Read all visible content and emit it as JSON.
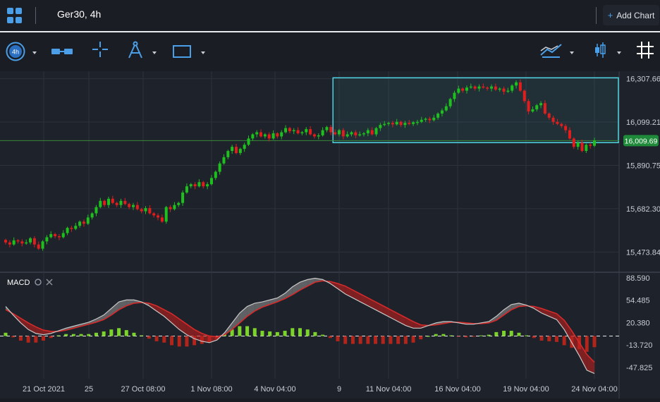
{
  "header": {
    "tab_title": "Ger30, 4h",
    "add_chart_label": "Add Chart"
  },
  "toolbar": {
    "timeframe_label": "4h"
  },
  "chart_data": [
    {
      "type": "candlestick",
      "symbol": "Ger30",
      "interval": "4h",
      "price_axis_ticks": [
        "16,307.66",
        "16,099.21",
        "15,890.75",
        "15,682.30",
        "15,473.84"
      ],
      "current_price": "16,009.69",
      "ylim": [
        15380,
        16330
      ],
      "time_axis_labels": [
        "21 Oct 2021",
        "25",
        "27 Oct 08:00",
        "1 Nov 08:00",
        "4 Nov 04:00",
        "9",
        "11 Nov 04:00",
        "16 Nov 04:00",
        "19 Nov 04:00",
        "24 Nov 04:00"
      ],
      "highlight_box": {
        "price_low": 16000,
        "price_high": 16312
      },
      "close_values": [
        15520,
        15510,
        15530,
        15525,
        15515,
        15520,
        15540,
        15510,
        15490,
        15525,
        15545,
        15560,
        15550,
        15545,
        15565,
        15590,
        15585,
        15600,
        15620,
        15610,
        15640,
        15660,
        15690,
        15720,
        15700,
        15730,
        15710,
        15700,
        15720,
        15705,
        15690,
        15700,
        15680,
        15670,
        15685,
        15660,
        15650,
        15640,
        15620,
        15690,
        15680,
        15700,
        15710,
        15760,
        15790,
        15800,
        15790,
        15810,
        15790,
        15800,
        15830,
        15860,
        15900,
        15930,
        15960,
        15980,
        15950,
        15970,
        15990,
        16020,
        16040,
        16050,
        16030,
        16040,
        16020,
        16045,
        16030,
        16050,
        16070,
        16055,
        16060,
        16045,
        16050,
        16065,
        16040,
        16030,
        16035,
        16060,
        16075,
        16050,
        16040,
        16060,
        16030,
        16040,
        16050,
        16035,
        16040,
        16045,
        16060,
        16040,
        16070,
        16085,
        16090,
        16095,
        16088,
        16100,
        16085,
        16095,
        16090,
        16098,
        16100,
        16110,
        16115,
        16108,
        16120,
        16140,
        16155,
        16175,
        16210,
        16240,
        16260,
        16250,
        16265,
        16270,
        16260,
        16270,
        16265,
        16260,
        16270,
        16255,
        16260,
        16245,
        16250,
        16275,
        16290,
        16250,
        16200,
        16150,
        16160,
        16180,
        16190,
        16140,
        16120,
        16100,
        16090,
        16080,
        16060,
        16020,
        15980,
        16000,
        15960,
        15990,
        15985,
        16010
      ]
    },
    {
      "type": "line",
      "indicator": "MACD",
      "axis_ticks": [
        "88.590",
        "54.485",
        "20.380",
        "-13.720",
        "-47.825"
      ],
      "ylim": [
        -65,
        95
      ],
      "series": [
        {
          "role": "macd-line",
          "color": "#c8c8c8",
          "values": [
            45,
            32,
            20,
            10,
            4,
            2,
            4,
            8,
            12,
            15,
            18,
            21,
            26,
            32,
            42,
            52,
            55,
            55,
            52,
            46,
            38,
            30,
            20,
            10,
            2,
            -4,
            -8,
            -10,
            -6,
            5,
            20,
            35,
            45,
            50,
            52,
            55,
            58,
            65,
            75,
            82,
            86,
            88,
            86,
            80,
            72,
            64,
            58,
            52,
            46,
            40,
            34,
            28,
            22,
            16,
            12,
            12,
            16,
            20,
            22,
            22,
            20,
            18,
            18,
            20,
            22,
            30,
            40,
            48,
            50,
            47,
            42,
            35,
            30,
            25,
            10,
            -10,
            -30,
            -52,
            -57
          ]
        },
        {
          "role": "signal-line",
          "color": "#d42a2a",
          "values": [
            40,
            34,
            27,
            20,
            14,
            9,
            7,
            7,
            9,
            12,
            15,
            18,
            21,
            25,
            32,
            40,
            46,
            50,
            51,
            50,
            46,
            40,
            34,
            26,
            18,
            10,
            4,
            0,
            -1,
            2,
            10,
            20,
            30,
            38,
            44,
            48,
            52,
            57,
            63,
            70,
            76,
            82,
            84,
            83,
            80,
            76,
            70,
            64,
            58,
            52,
            46,
            40,
            34,
            28,
            22,
            17,
            16,
            17,
            19,
            21,
            21,
            20,
            19,
            19,
            20,
            24,
            32,
            40,
            45,
            46,
            45,
            42,
            38,
            34,
            24,
            8,
            -10,
            -28,
            -40
          ]
        }
      ],
      "histogram": [
        5,
        -2,
        -7,
        -10,
        -10,
        -7,
        -3,
        1,
        3,
        3,
        3,
        3,
        5,
        7,
        10,
        12,
        9,
        5,
        1,
        -4,
        -8,
        -10,
        -14,
        -16,
        -16,
        -14,
        -12,
        -10,
        -5,
        3,
        10,
        15,
        15,
        12,
        8,
        7,
        6,
        8,
        12,
        12,
        10,
        6,
        2,
        -3,
        -8,
        -12,
        -12,
        -12,
        -12,
        -12,
        -12,
        -12,
        -12,
        -12,
        -10,
        -5,
        0,
        3,
        3,
        1,
        -1,
        -2,
        -1,
        1,
        2,
        6,
        8,
        8,
        5,
        1,
        -3,
        -7,
        -8,
        -9,
        -14,
        -18,
        -20,
        -24,
        -17
      ]
    }
  ]
}
